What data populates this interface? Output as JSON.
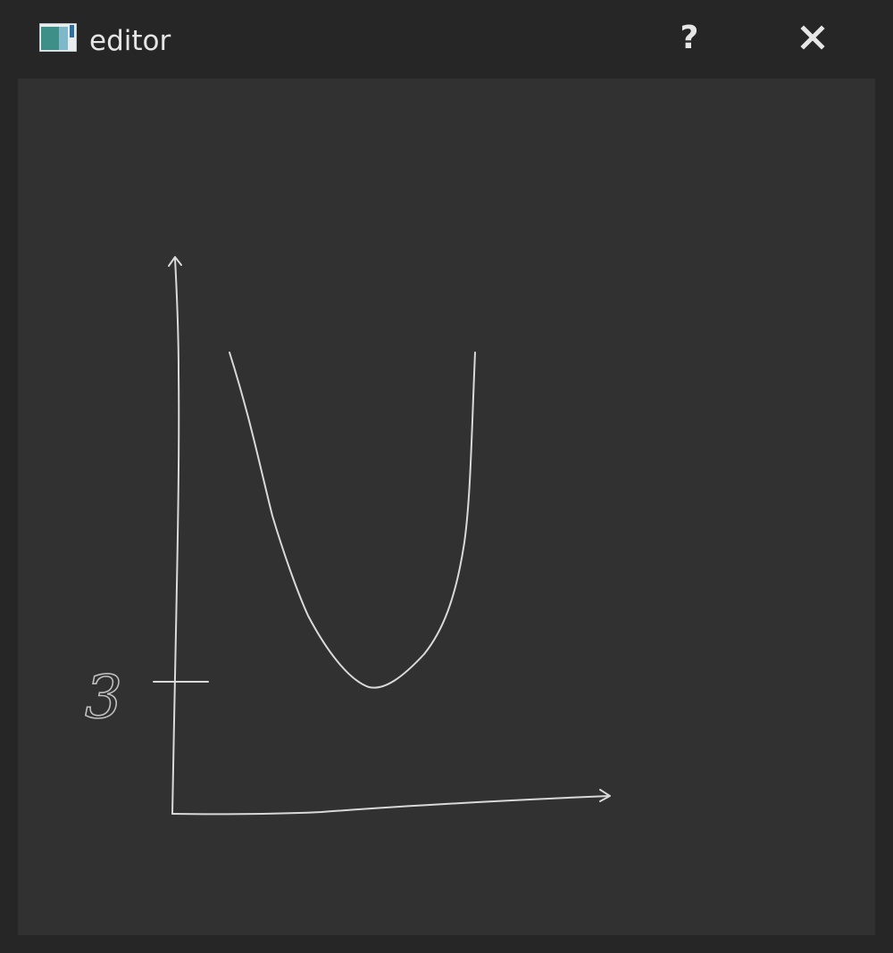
{
  "window": {
    "title": "editor",
    "help_label": "?",
    "icons": {
      "app": "app-window-icon",
      "close": "close-icon"
    }
  },
  "sketch": {
    "tick_label": "3",
    "stroke_color": "#d9d9d9",
    "background_color": "#313131"
  }
}
